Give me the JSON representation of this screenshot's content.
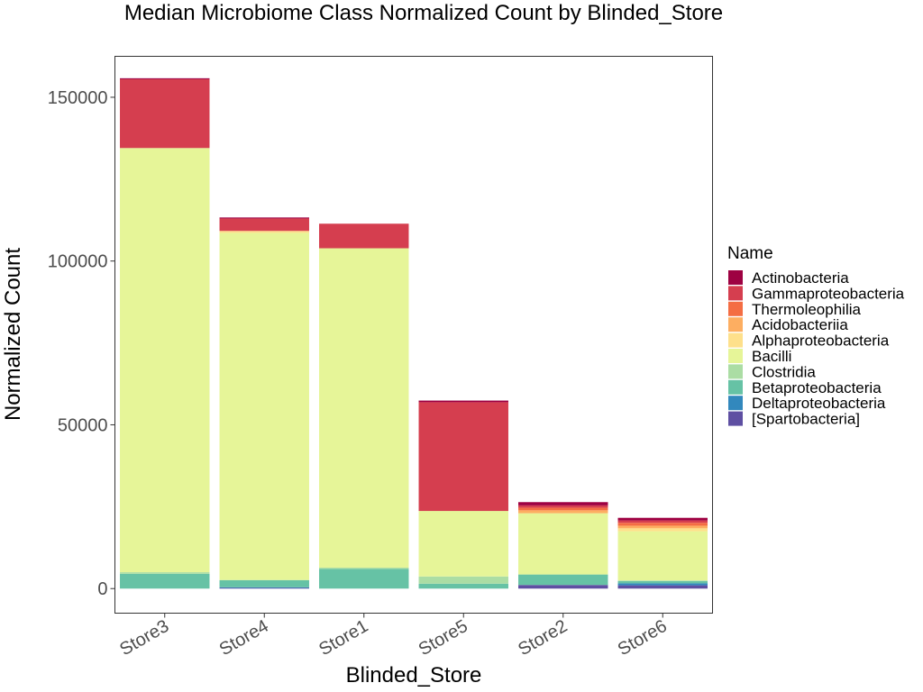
{
  "chart_data": {
    "type": "bar",
    "stacked": true,
    "title": "Median Microbiome Class Normalized Count by Blinded_Store",
    "xlabel": "Blinded_Store",
    "ylabel": "Normalized Count",
    "ylim": [
      -7500,
      162500
    ],
    "yticks": [
      0,
      50000,
      100000,
      150000
    ],
    "grid": false,
    "legend_title": "Name",
    "legend_position": "right",
    "categories": [
      "Store3",
      "Store4",
      "Store1",
      "Store5",
      "Store2",
      "Store6"
    ],
    "series": [
      {
        "name": "[Spartobacteria]",
        "color": "#5E4FA2",
        "values": [
          0,
          200,
          0,
          0,
          1100,
          1000
        ]
      },
      {
        "name": "Deltaproteobacteria",
        "color": "#3288BD",
        "values": [
          0,
          200,
          0,
          0,
          0,
          600
        ]
      },
      {
        "name": "Betaproteobacteria",
        "color": "#66C2A5",
        "values": [
          4500,
          2200,
          6000,
          1500,
          3200,
          700
        ]
      },
      {
        "name": "Clostridia",
        "color": "#ABDDA4",
        "values": [
          500,
          0,
          400,
          2200,
          0,
          200
        ]
      },
      {
        "name": "Bacilli",
        "color": "#E6F598",
        "values": [
          129500,
          106000,
          97500,
          20000,
          18700,
          15000
        ]
      },
      {
        "name": "Alphaproteobacteria",
        "color": "#FEE08B",
        "values": [
          0,
          600,
          0,
          0,
          0,
          900
        ]
      },
      {
        "name": "Acidobacteriia",
        "color": "#FDAE61",
        "values": [
          0,
          0,
          0,
          0,
          900,
          800
        ]
      },
      {
        "name": "Thermoleophilia",
        "color": "#F46D43",
        "values": [
          0,
          0,
          0,
          0,
          800,
          900
        ]
      },
      {
        "name": "Gammaproteobacteria",
        "color": "#D53E4F",
        "values": [
          21000,
          3800,
          7500,
          33200,
          700,
          700
        ]
      },
      {
        "name": "Actinobacteria",
        "color": "#9E0142",
        "values": [
          300,
          300,
          0,
          500,
          1000,
          800
        ]
      }
    ],
    "legend_order": [
      "Actinobacteria",
      "Gammaproteobacteria",
      "Thermoleophilia",
      "Acidobacteriia",
      "Alphaproteobacteria",
      "Bacilli",
      "Clostridia",
      "Betaproteobacteria",
      "Deltaproteobacteria",
      "[Spartobacteria]"
    ]
  }
}
